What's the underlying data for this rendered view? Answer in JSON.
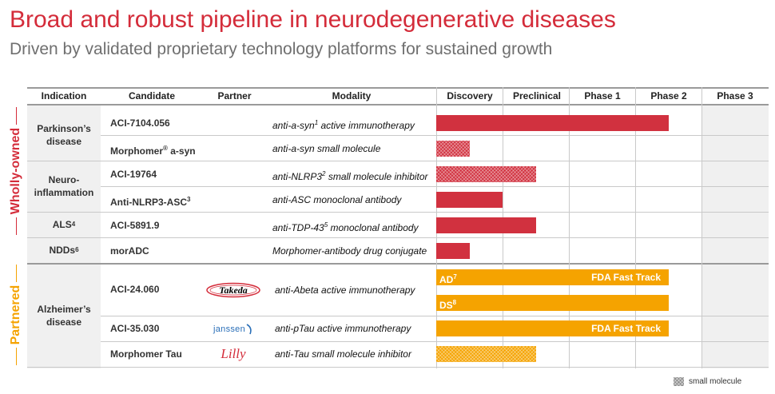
{
  "title": "Broad and robust pipeline in neurodegenerative diseases",
  "subtitle": "Driven by validated proprietary technology platforms for sustained growth",
  "side_labels": {
    "wholly_owned": "Wholly-owned",
    "partnered": "Partnered"
  },
  "columns": {
    "indication": "Indication",
    "candidate": "Candidate",
    "partner": "Partner",
    "modality": "Modality",
    "phases": [
      "Discovery",
      "Preclinical",
      "Phase 1",
      "Phase 2",
      "Phase 3"
    ]
  },
  "indications": {
    "parkinsons": {
      "line1": "Parkinson’s",
      "line2": "disease"
    },
    "neuro": {
      "line1": "Neuro-",
      "line2": "inflammation"
    },
    "als": {
      "text": "ALS",
      "sup": "4"
    },
    "ndds": {
      "text": "NDDs",
      "sup": "6"
    },
    "alzheimers": {
      "line1": "Alzheimer’s",
      "line2": "disease"
    }
  },
  "rows": [
    {
      "candidate": "ACI-7104.056",
      "candidate_sup": "",
      "modality_pre": "anti-a-syn",
      "modality_sup": "1",
      "modality_post": " active immunotherapy",
      "progress": 3.5,
      "type": "antibody-or-vaccine",
      "color": "#d1313f"
    },
    {
      "candidate": "Morphomer",
      "candidate_sup": "®",
      "candidate_post": " a-syn",
      "modality_pre": "anti-a-syn small molecule",
      "modality_sup": "",
      "modality_post": "",
      "progress": 0.5,
      "type": "small-molecule",
      "color": "#d1313f"
    },
    {
      "candidate": "ACI-19764",
      "candidate_sup": "",
      "modality_pre": "anti-NLRP3",
      "modality_sup": "2",
      "modality_post": " small molecule inhibitor",
      "progress": 1.5,
      "type": "small-molecule",
      "color": "#d1313f"
    },
    {
      "candidate": "Anti-NLRP3-ASC",
      "candidate_sup": "3",
      "modality_pre": "anti-ASC monoclonal antibody",
      "modality_sup": "",
      "modality_post": "",
      "progress": 1.0,
      "type": "antibody-or-vaccine",
      "color": "#d1313f"
    },
    {
      "candidate": "ACI-5891.9",
      "candidate_sup": "",
      "modality_pre": "anti-TDP-43",
      "modality_sup": "5",
      "modality_post": " monoclonal antibody",
      "progress": 1.5,
      "type": "antibody-or-vaccine",
      "color": "#d1313f"
    },
    {
      "candidate": "morADC",
      "candidate_sup": "",
      "modality_pre": "Morphomer-antibody drug conjugate",
      "modality_sup": "",
      "modality_post": "",
      "progress": 0.5,
      "type": "antibody-or-vaccine",
      "color": "#d1313f"
    },
    {
      "candidate": "ACI-24.060",
      "candidate_sup": "",
      "partner": "Takeda",
      "modality_pre": "anti-Abeta active immunotherapy",
      "modality_sup": "",
      "modality_post": ""
    },
    {
      "candidate": "ACI-35.030",
      "candidate_sup": "",
      "partner": "janssen",
      "modality_pre": "anti-pTau active immunotherapy",
      "modality_sup": "",
      "modality_post": "",
      "progress": 3.5,
      "type": "antibody-or-vaccine",
      "color": "#f5a300",
      "bar_label": "FDA Fast Track"
    },
    {
      "candidate": "Morphomer Tau",
      "candidate_sup": "",
      "partner": "Lilly",
      "modality_pre": "anti-Tau small molecule inhibitor",
      "modality_sup": "",
      "modality_post": "",
      "progress": 1.5,
      "type": "small-molecule",
      "color": "#f5a300"
    }
  ],
  "aci24_bars": [
    {
      "label": "AD",
      "sup": "7",
      "right_label": "FDA Fast Track",
      "progress": 3.5
    },
    {
      "label": "DS",
      "sup": "8",
      "right_label": "",
      "progress": 3.5
    }
  ],
  "legend": {
    "label": "small molecule"
  }
}
